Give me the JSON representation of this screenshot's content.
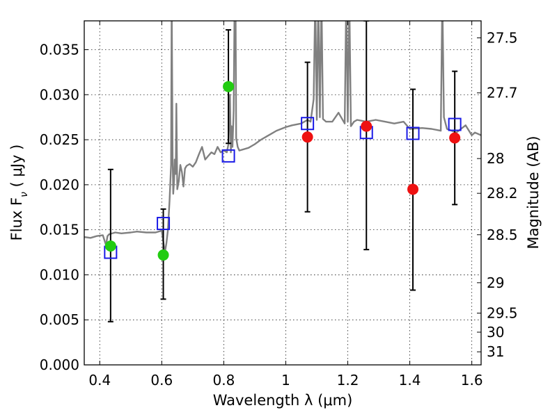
{
  "chart_data": {
    "type": "scatter",
    "xlabel": "Wavelength  λ (μm)",
    "ylabel": "Flux  F",
    "ylabel_sub": "ν",
    "ylabel_rest": "  ( μJy )",
    "y2label": "Magnitude (AB)",
    "xlim": [
      0.35,
      1.63
    ],
    "ylim": [
      0.0,
      0.0382
    ],
    "grid": true,
    "x_ticks": [
      {
        "value": 0.4,
        "label": "0.4"
      },
      {
        "value": 0.6,
        "label": "0.6"
      },
      {
        "value": 0.8,
        "label": "0.8"
      },
      {
        "value": 1.0,
        "label": "1"
      },
      {
        "value": 1.2,
        "label": "1.2"
      },
      {
        "value": 1.4,
        "label": "1.4"
      },
      {
        "value": 1.6,
        "label": "1.6"
      }
    ],
    "y_ticks": [
      {
        "value": 0.0,
        "label": "0.000"
      },
      {
        "value": 0.005,
        "label": "0.005"
      },
      {
        "value": 0.01,
        "label": "0.010"
      },
      {
        "value": 0.015,
        "label": "0.015"
      },
      {
        "value": 0.02,
        "label": "0.020"
      },
      {
        "value": 0.025,
        "label": "0.025"
      },
      {
        "value": 0.03,
        "label": "0.030"
      },
      {
        "value": 0.035,
        "label": "0.035"
      }
    ],
    "y2_ticks": [
      {
        "flux": 0.03631,
        "label": "27.5"
      },
      {
        "flux": 0.0302,
        "label": "27.7"
      },
      {
        "flux": 0.02291,
        "label": "28"
      },
      {
        "flux": 0.01905,
        "label": "28.2"
      },
      {
        "flux": 0.01445,
        "label": "28.5"
      },
      {
        "flux": 0.00912,
        "label": "29"
      },
      {
        "flux": 0.00575,
        "label": "29.5"
      },
      {
        "flux": 0.00363,
        "label": "30"
      },
      {
        "flux": 0.00145,
        "label": "31"
      }
    ],
    "series": [
      {
        "name": "model spectrum",
        "kind": "line",
        "color": "#808080",
        "x": [
          0.35,
          0.37,
          0.39,
          0.41,
          0.42,
          0.425,
          0.43,
          0.45,
          0.47,
          0.5,
          0.52,
          0.55,
          0.58,
          0.6,
          0.61,
          0.615,
          0.62,
          0.625,
          0.63,
          0.632,
          0.635,
          0.637,
          0.64,
          0.642,
          0.645,
          0.647,
          0.65,
          0.655,
          0.66,
          0.665,
          0.67,
          0.675,
          0.68,
          0.69,
          0.7,
          0.71,
          0.72,
          0.73,
          0.74,
          0.75,
          0.76,
          0.77,
          0.78,
          0.79,
          0.8,
          0.81,
          0.815,
          0.82,
          0.823,
          0.825,
          0.828,
          0.832,
          0.835,
          0.838,
          0.84,
          0.845,
          0.85,
          0.88,
          0.9,
          0.92,
          0.95,
          0.97,
          1.0,
          1.02,
          1.05,
          1.07,
          1.08,
          1.09,
          1.095,
          1.1,
          1.105,
          1.11,
          1.115,
          1.12,
          1.13,
          1.15,
          1.17,
          1.19,
          1.195,
          1.2,
          1.205,
          1.21,
          1.22,
          1.23,
          1.26,
          1.29,
          1.32,
          1.35,
          1.38,
          1.4,
          1.44,
          1.47,
          1.5,
          1.505,
          1.51,
          1.52,
          1.55,
          1.58,
          1.6,
          1.61,
          1.63
        ],
        "y": [
          0.0142,
          0.0141,
          0.0143,
          0.0144,
          0.0133,
          0.0143,
          0.0145,
          0.0147,
          0.0146,
          0.0147,
          0.0148,
          0.0147,
          0.0147,
          0.0149,
          0.0125,
          0.0135,
          0.015,
          0.0182,
          0.0222,
          0.041,
          0.0232,
          0.019,
          0.0205,
          0.0228,
          0.0212,
          0.029,
          0.0195,
          0.0204,
          0.0222,
          0.0214,
          0.0198,
          0.0218,
          0.0221,
          0.0223,
          0.022,
          0.0225,
          0.0234,
          0.0242,
          0.0228,
          0.0232,
          0.0236,
          0.0234,
          0.0242,
          0.0236,
          0.0238,
          0.0236,
          0.0245,
          0.03,
          0.0236,
          0.0265,
          0.0242,
          0.0282,
          0.041,
          0.041,
          0.0252,
          0.0242,
          0.0238,
          0.0241,
          0.0245,
          0.025,
          0.0256,
          0.026,
          0.0264,
          0.0266,
          0.0268,
          0.0272,
          0.027,
          0.0295,
          0.041,
          0.0272,
          0.041,
          0.0275,
          0.041,
          0.0273,
          0.027,
          0.027,
          0.028,
          0.0268,
          0.041,
          0.027,
          0.041,
          0.0265,
          0.027,
          0.0272,
          0.027,
          0.0272,
          0.027,
          0.0268,
          0.027,
          0.0262,
          0.0263,
          0.0262,
          0.026,
          0.041,
          0.0275,
          0.0262,
          0.0258,
          0.0266,
          0.0255,
          0.0258,
          0.0255
        ]
      },
      {
        "name": "blue squares",
        "kind": "marker",
        "marker": "square-open",
        "color": "#1a1ae6",
        "points": [
          {
            "x": 0.435,
            "y": 0.0125
          },
          {
            "x": 0.605,
            "y": 0.0157
          },
          {
            "x": 0.815,
            "y": 0.0232
          },
          {
            "x": 1.07,
            "y": 0.0268
          },
          {
            "x": 1.26,
            "y": 0.0258
          },
          {
            "x": 1.41,
            "y": 0.0257
          },
          {
            "x": 1.545,
            "y": 0.0267
          }
        ]
      },
      {
        "name": "green circles",
        "kind": "marker",
        "marker": "circle",
        "color": "#22cc11",
        "points": [
          {
            "x": 0.435,
            "y": 0.0132
          },
          {
            "x": 0.605,
            "y": 0.0122
          },
          {
            "x": 0.815,
            "y": 0.0309
          }
        ]
      },
      {
        "name": "red circles",
        "kind": "marker",
        "marker": "circle",
        "color": "#ee1111",
        "points": [
          {
            "x": 1.07,
            "y": 0.0253
          },
          {
            "x": 1.26,
            "y": 0.0265
          },
          {
            "x": 1.41,
            "y": 0.0195
          },
          {
            "x": 1.545,
            "y": 0.0252
          }
        ]
      }
    ],
    "error_bars": [
      {
        "x": 0.435,
        "low": 0.0048,
        "high": 0.0217
      },
      {
        "x": 0.605,
        "low": 0.0073,
        "high": 0.0173
      },
      {
        "x": 0.815,
        "low": 0.0246,
        "high": 0.0372
      },
      {
        "x": 1.07,
        "low": 0.017,
        "high": 0.0336
      },
      {
        "x": 1.26,
        "low": 0.0128,
        "high": 0.0382
      },
      {
        "x": 1.41,
        "low": 0.0083,
        "high": 0.0306
      },
      {
        "x": 1.545,
        "low": 0.0178,
        "high": 0.0326
      }
    ]
  }
}
